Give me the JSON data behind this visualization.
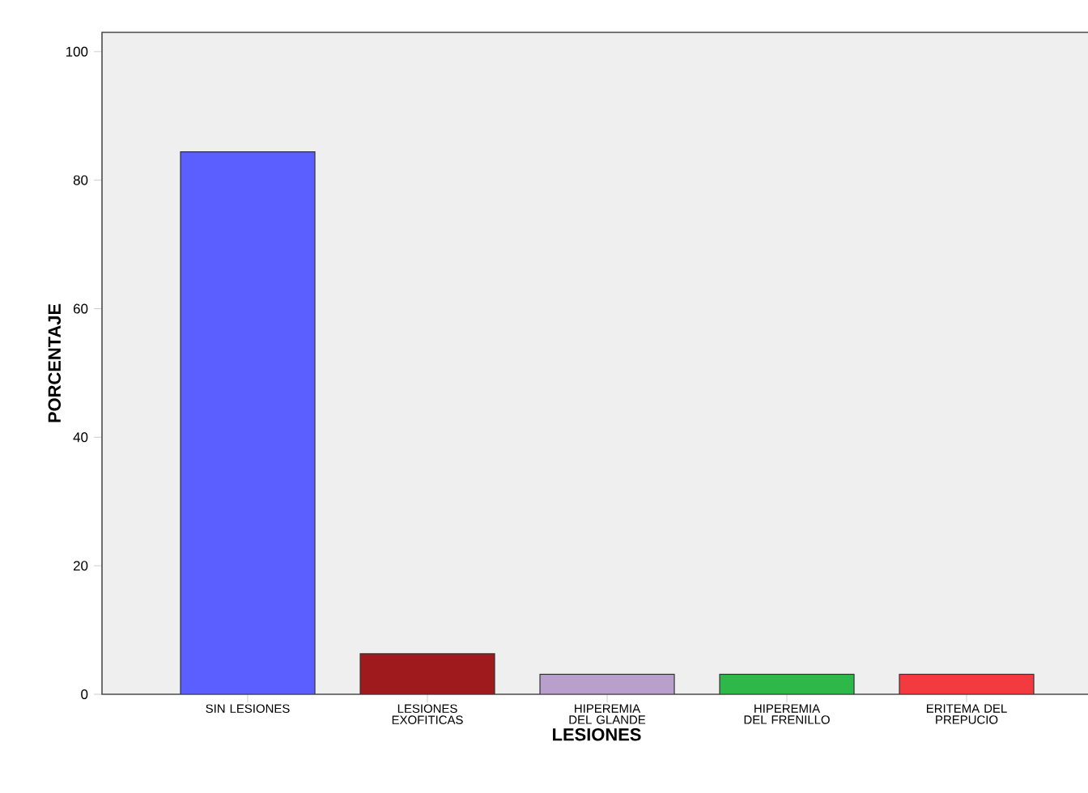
{
  "chart_data": {
    "type": "bar",
    "xlabel": "LESIONES",
    "ylabel": "PORCENTAJE",
    "categories": [
      "SIN LESIONES",
      "LESIONES EXOFITICAS",
      "HIPEREMIA DEL GLANDE",
      "HIPEREMIA DEL FRENILLO",
      "ERITEMA DEL PREPUCIO"
    ],
    "values": [
      84.4,
      6.3,
      3.1,
      3.1,
      3.1
    ],
    "colors": [
      "#5b5fff",
      "#9f1a1c",
      "#b89fcc",
      "#2fb84a",
      "#f23a3f"
    ],
    "ylim": [
      0,
      103
    ],
    "yticks": [
      0,
      20,
      40,
      60,
      80,
      100
    ]
  }
}
